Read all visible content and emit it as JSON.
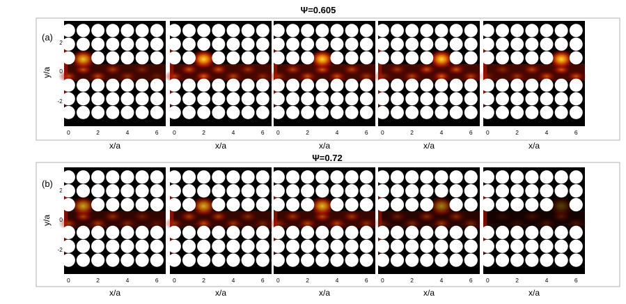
{
  "colors": {
    "background": "#000000",
    "hole": "#ffffff",
    "field_low": "#1c0000",
    "field_mid": "#c01800",
    "field_high": "#ffd028",
    "frame": "#b0b0b0"
  },
  "chart_data": [
    {
      "type": "heatmap",
      "panel_label": "(a)",
      "title": "Ψ=0.605",
      "xlabel": "x/a",
      "ylabel": "y/a",
      "x_ticks": [
        "0",
        "2",
        "4",
        "6"
      ],
      "y_ticks": [
        "2",
        "0",
        "-2"
      ],
      "xlim": [
        -0.3,
        6.6
      ],
      "ylim": [
        -4.0,
        3.7
      ],
      "frames": [
        {
          "hot_x": 1.0,
          "hot_y": 0.9,
          "intensity": 0.9
        },
        {
          "hot_x": 2.0,
          "hot_y": 0.9,
          "intensity": 1.0
        },
        {
          "hot_x": 3.0,
          "hot_y": 0.9,
          "intensity": 1.0
        },
        {
          "hot_x": 4.0,
          "hot_y": 0.9,
          "intensity": 1.0
        },
        {
          "hot_x": 5.0,
          "hot_y": 0.9,
          "intensity": 1.0
        }
      ]
    },
    {
      "type": "heatmap",
      "panel_label": "(b)",
      "title": "Ψ=0.72",
      "xlabel": "x/a",
      "ylabel": "y/a",
      "x_ticks": [
        "0",
        "2",
        "4",
        "6"
      ],
      "y_ticks": [
        "2",
        "0",
        "-2"
      ],
      "xlim": [
        -0.3,
        6.6
      ],
      "ylim": [
        -4.0,
        3.7
      ],
      "frames": [
        {
          "hot_x": 1.0,
          "hot_y": 0.9,
          "intensity": 0.75
        },
        {
          "hot_x": 2.0,
          "hot_y": 0.9,
          "intensity": 0.8
        },
        {
          "hot_x": 3.0,
          "hot_y": 0.9,
          "intensity": 0.85
        },
        {
          "hot_x": 4.0,
          "hot_y": 0.9,
          "intensity": 0.6
        },
        {
          "hot_x": 5.0,
          "hot_y": 0.9,
          "intensity": 0.3
        }
      ]
    }
  ]
}
